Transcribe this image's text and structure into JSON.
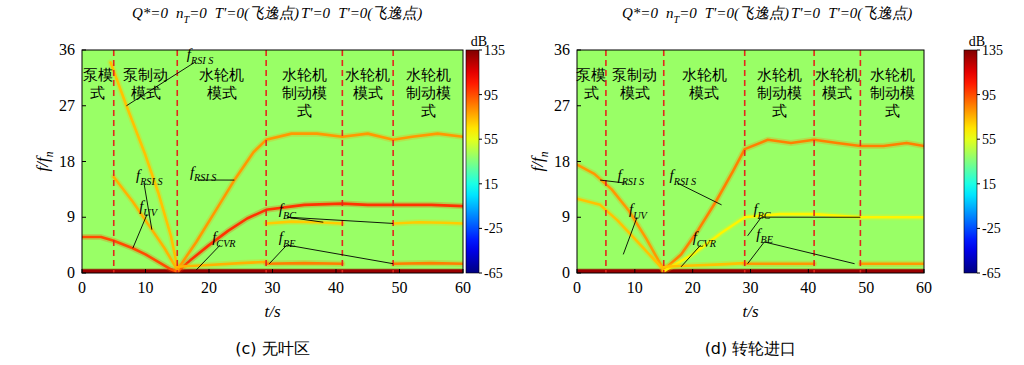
{
  "chart_data": [
    {
      "type": "spectrogram",
      "caption": "(c) 无叶区",
      "boundary_labels": [
        {
          "text": "Q*=0"
        },
        {
          "text": "n",
          "sub": "T",
          "after": "=0"
        },
        {
          "text": "T'=0(飞逸点)"
        },
        {
          "text": "T'=0"
        },
        {
          "text": "T'=0(飞逸点)"
        }
      ],
      "boundaries": [
        5,
        15,
        29,
        41,
        49
      ],
      "modes": [
        "泵模式",
        "泵制动模式",
        "水轮机模式",
        "水轮机制动模式",
        "水轮机模式",
        "水轮机制动模式"
      ],
      "xlabel": {
        "text": "t/s"
      },
      "ylabel": {
        "text": "f/f",
        "sub": "n"
      },
      "xlim": [
        0,
        60
      ],
      "xticks": [
        0,
        10,
        20,
        30,
        40,
        50,
        60
      ],
      "ylim": [
        0,
        36
      ],
      "yticks": [
        0,
        9,
        18,
        27,
        36
      ],
      "background_db": 40,
      "colorbar_label": "dB",
      "colorbar_range": [
        -65,
        135
      ],
      "colorbar_ticks": [
        -65,
        -25,
        15,
        55,
        95,
        135
      ],
      "series": [
        {
          "x": [
            0,
            60
          ],
          "values": [
            0.3,
            0.3
          ],
          "db": 130
        },
        {
          "x": [
            0,
            3,
            5,
            8,
            10,
            12,
            14,
            15
          ],
          "values": [
            5.8,
            5.8,
            5.2,
            4,
            3,
            1.8,
            0.6,
            0.2
          ],
          "db": 95
        },
        {
          "x": [
            15,
            17,
            20,
            23,
            26,
            29,
            35,
            41,
            45,
            49,
            55,
            60
          ],
          "values": [
            0.2,
            2,
            4.5,
            6.8,
            8.8,
            10.2,
            11,
            11.2,
            11,
            11,
            11,
            10.8
          ],
          "db": 100
        },
        {
          "x": [
            5,
            8,
            11,
            13,
            15
          ],
          "values": [
            15.5,
            11.5,
            7,
            4,
            0.5
          ],
          "db": 75
        },
        {
          "x": [
            4.5,
            7,
            10,
            12,
            14,
            15
          ],
          "values": [
            34,
            27,
            19,
            13,
            6,
            1
          ],
          "db": 72
        },
        {
          "x": [
            15,
            18,
            21,
            24,
            27,
            29,
            33,
            37,
            41,
            45,
            49,
            52,
            56,
            60
          ],
          "values": [
            0.5,
            5,
            10,
            15,
            19.5,
            21.5,
            22.5,
            22.5,
            22,
            22.5,
            21.5,
            22,
            22.5,
            22
          ],
          "db": 80
        },
        {
          "x": [
            15,
            20,
            25,
            29
          ],
          "values": [
            1,
            1.3,
            1.6,
            1.8
          ],
          "db": 75
        },
        {
          "x": [
            29,
            33,
            37,
            41,
            45,
            49,
            53,
            57,
            60
          ],
          "values": [
            8,
            8.3,
            8.2,
            8,
            null,
            8,
            8.2,
            8.1,
            8
          ],
          "db": 70
        },
        {
          "x": [
            29,
            35,
            41,
            45,
            49,
            55,
            60
          ],
          "values": [
            1.5,
            1.6,
            1.5,
            null,
            1.5,
            1.6,
            1.5
          ],
          "db": 85
        }
      ],
      "annotations": [
        {
          "text": "f",
          "sub": "RSI S",
          "t": 16.5,
          "f": 34.5,
          "targets": [
            [
              7,
              27
            ]
          ]
        },
        {
          "text": "f",
          "sub": "RSI S",
          "t": 8.5,
          "f": 15,
          "targets": [
            [
              11,
              7
            ]
          ]
        },
        {
          "text": "f",
          "sub": "RSI S",
          "t": 17,
          "f": 15.5,
          "targets": [
            [
              24,
              15
            ]
          ]
        },
        {
          "text": "f",
          "sub": "UV",
          "t": 9,
          "f": 10,
          "targets": [
            [
              8,
              4
            ]
          ]
        },
        {
          "text": "f",
          "sub": "CVR",
          "t": 20.5,
          "f": 5,
          "targets": [
            [
              18,
              0.5
            ]
          ]
        },
        {
          "text": "f",
          "sub": "BC",
          "t": 31,
          "f": 9.5,
          "targets": [
            [
              38,
              8.2
            ],
            [
              49,
              8
            ]
          ]
        },
        {
          "text": "f",
          "sub": "BE",
          "t": 31,
          "f": 5,
          "targets": [
            [
              29.5,
              1.5
            ],
            [
              49,
              1.5
            ]
          ]
        }
      ]
    },
    {
      "type": "spectrogram",
      "caption": "(d) 转轮进口",
      "boundary_labels": [
        {
          "text": "Q*=0"
        },
        {
          "text": "n",
          "sub": "T",
          "after": "=0"
        },
        {
          "text": "T'=0(飞逸点)"
        },
        {
          "text": "T'=0"
        },
        {
          "text": "T'=0(飞逸点)"
        }
      ],
      "boundaries": [
        5,
        15,
        29,
        41,
        49
      ],
      "modes": [
        "泵模式",
        "泵制动模式",
        "水轮机模式",
        "水轮机制动模式",
        "水轮机模式",
        "水轮机制动模式"
      ],
      "xlabel": {
        "text": "t/s"
      },
      "ylabel": {
        "text": "f/f",
        "sub": "n"
      },
      "xlim": [
        0,
        60
      ],
      "xticks": [
        0,
        10,
        20,
        30,
        40,
        50,
        60
      ],
      "ylim": [
        0,
        36
      ],
      "yticks": [
        0,
        9,
        18,
        27,
        36
      ],
      "background_db": 40,
      "colorbar_label": "dB",
      "colorbar_range": [
        -65,
        135
      ],
      "colorbar_ticks": [
        -65,
        -25,
        15,
        55,
        95,
        135
      ],
      "series": [
        {
          "x": [
            0,
            60
          ],
          "values": [
            0.3,
            0.3
          ],
          "db": 130
        },
        {
          "x": [
            0,
            3,
            6,
            9,
            12,
            15
          ],
          "values": [
            17.5,
            16,
            13.5,
            10,
            5.5,
            0.5
          ],
          "db": 80
        },
        {
          "x": [
            0,
            4,
            7,
            10,
            13,
            15
          ],
          "values": [
            12,
            11,
            8.5,
            5.5,
            2.5,
            0.5
          ],
          "db": 72
        },
        {
          "x": [
            15,
            18,
            21,
            24,
            27,
            29,
            33,
            37,
            41,
            45,
            49,
            53,
            57,
            60
          ],
          "values": [
            0.5,
            3,
            7,
            11.5,
            16.5,
            20,
            21.5,
            21,
            21.5,
            21,
            20.5,
            20.5,
            21,
            20.5
          ],
          "db": 85
        },
        {
          "x": [
            15,
            20,
            25,
            29,
            35,
            41,
            49,
            55,
            60
          ],
          "values": [
            0.3,
            3,
            6.5,
            9,
            9.5,
            9.5,
            9,
            9,
            9
          ],
          "db": 62
        },
        {
          "x": [
            15,
            20,
            25,
            29
          ],
          "values": [
            1,
            1.2,
            1.4,
            1.6
          ],
          "db": 72
        },
        {
          "x": [
            29,
            35,
            41,
            45,
            49,
            55,
            60
          ],
          "values": [
            1.5,
            1.5,
            1.5,
            null,
            1.5,
            1.5,
            1.5
          ],
          "db": 80
        }
      ],
      "annotations": [
        {
          "text": "f",
          "sub": "RSI S",
          "t": 7,
          "f": 15,
          "targets": [
            [
              4,
              15
            ]
          ]
        },
        {
          "text": "f",
          "sub": "RSI S",
          "t": 16,
          "f": 15,
          "targets": [
            [
              25,
              11
            ]
          ]
        },
        {
          "text": "f",
          "sub": "UV",
          "t": 9,
          "f": 9.5,
          "targets": [
            [
              8,
              3
            ]
          ]
        },
        {
          "text": "f",
          "sub": "CVR",
          "t": 20,
          "f": 5,
          "targets": [
            [
              18,
              1
            ]
          ]
        },
        {
          "text": "f",
          "sub": "BC",
          "t": 30.5,
          "f": 9.5,
          "targets": [
            [
              29.5,
              6
            ],
            [
              49,
              9
            ]
          ]
        },
        {
          "text": "f",
          "sub": "BE",
          "t": 31,
          "f": 5.5,
          "targets": [
            [
              29.5,
              1.5
            ],
            [
              48,
              1.5
            ]
          ]
        }
      ]
    }
  ]
}
